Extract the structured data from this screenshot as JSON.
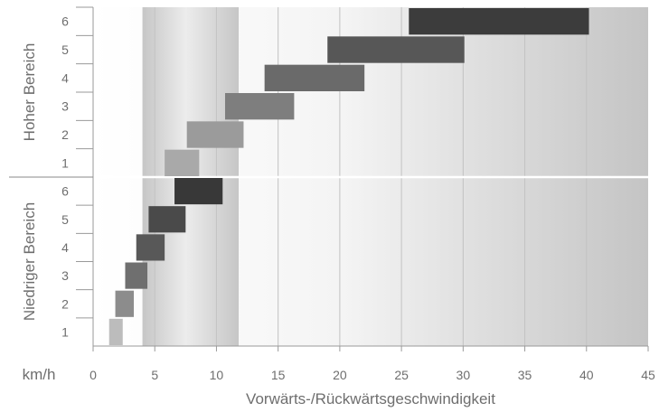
{
  "chart_data": {
    "type": "bar",
    "orientation": "horizontal-range",
    "xlabel": "Vorwärts-/Rückwärtsgeschwindigkeit",
    "unit": "km/h",
    "xlim": [
      0,
      45
    ],
    "xticks": [
      0,
      5,
      10,
      15,
      20,
      25,
      30,
      35,
      40,
      45
    ],
    "highlight_range": [
      4,
      11.8
    ],
    "groups": [
      {
        "name": "Hoher Bereich",
        "gears": [
          "1",
          "2",
          "3",
          "4",
          "5",
          "6"
        ],
        "ranges": [
          [
            5.8,
            8.6
          ],
          [
            7.6,
            12.2
          ],
          [
            10.7,
            16.3
          ],
          [
            13.9,
            22.0
          ],
          [
            19.0,
            30.1
          ],
          [
            25.6,
            40.2
          ]
        ],
        "colors": [
          "#a9a9a9",
          "#9b9b9b",
          "#7e7e7e",
          "#6a6a6a",
          "#575757",
          "#3c3c3c"
        ]
      },
      {
        "name": "Niedriger Bereich",
        "gears": [
          "1",
          "2",
          "3",
          "4",
          "5",
          "6"
        ],
        "ranges": [
          [
            1.3,
            2.4
          ],
          [
            1.8,
            3.3
          ],
          [
            2.6,
            4.4
          ],
          [
            3.5,
            5.8
          ],
          [
            4.5,
            7.5
          ],
          [
            6.6,
            10.5
          ]
        ],
        "colors": [
          "#bcbcbc",
          "#8c8c8c",
          "#6f6f6f",
          "#585858",
          "#4a4a4a",
          "#383838"
        ]
      }
    ]
  }
}
